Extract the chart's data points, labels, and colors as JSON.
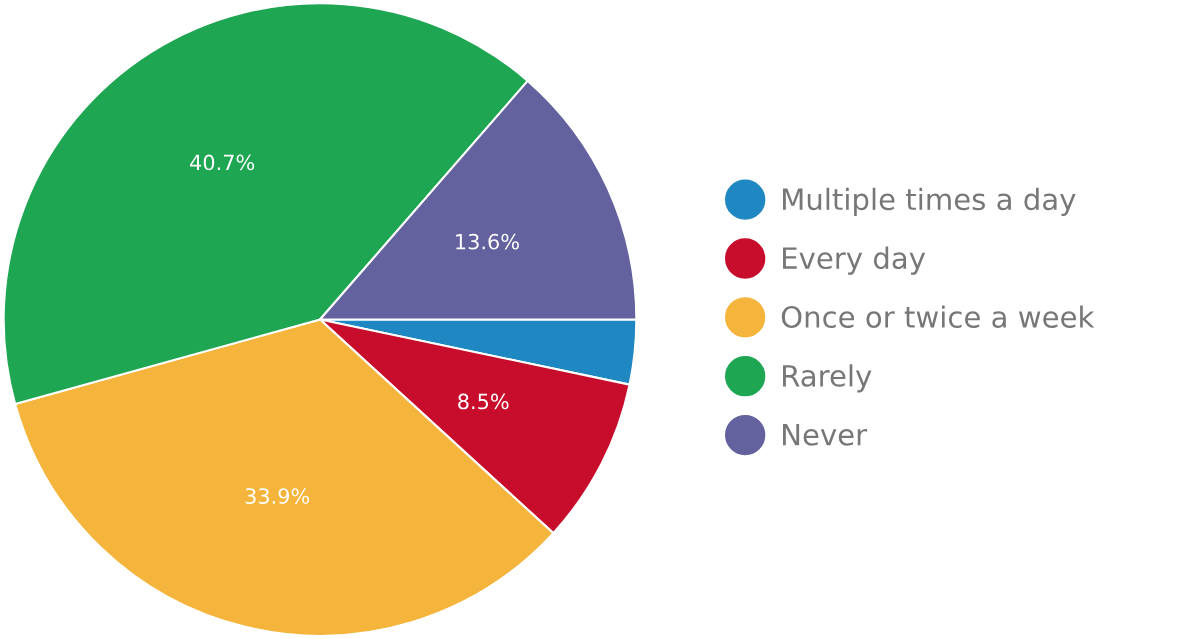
{
  "chart_data": {
    "type": "pie",
    "categories": [
      "Multiple times a day",
      "Every day",
      "Once or twice a week",
      "Rarely",
      "Never"
    ],
    "values": [
      3.3,
      8.5,
      33.9,
      40.7,
      13.6
    ],
    "value_labels": [
      null,
      "8.5%",
      "33.9%",
      "40.7%",
      "13.6%"
    ],
    "colors": [
      "#1f88c2",
      "#c70c2c",
      "#f5b43b",
      "#1ea653",
      "#63619e"
    ],
    "legend": "right"
  }
}
